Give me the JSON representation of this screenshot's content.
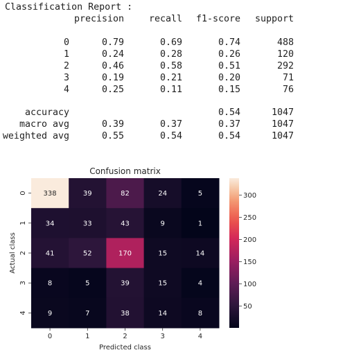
{
  "report": {
    "title": "Classification Report :",
    "headers": [
      "precision",
      "recall",
      "f1-score",
      "support"
    ],
    "rows": [
      {
        "label": "0",
        "values": [
          "0.79",
          "0.69",
          "0.74",
          "488"
        ]
      },
      {
        "label": "1",
        "values": [
          "0.24",
          "0.28",
          "0.26",
          "120"
        ]
      },
      {
        "label": "2",
        "values": [
          "0.46",
          "0.58",
          "0.51",
          "292"
        ]
      },
      {
        "label": "3",
        "values": [
          "0.19",
          "0.21",
          "0.20",
          "71"
        ]
      },
      {
        "label": "4",
        "values": [
          "0.25",
          "0.11",
          "0.15",
          "76"
        ]
      }
    ],
    "summary": [
      {
        "label": "accuracy",
        "values": [
          "",
          "",
          "0.54",
          "1047"
        ]
      },
      {
        "label": "macro avg",
        "values": [
          "0.39",
          "0.37",
          "0.37",
          "1047"
        ]
      },
      {
        "label": "weighted avg",
        "values": [
          "0.55",
          "0.54",
          "0.54",
          "1047"
        ]
      }
    ]
  },
  "chart_data": {
    "type": "heatmap",
    "title": "Confusion matrix",
    "xlabel": "Predicted class",
    "ylabel": "Actual class",
    "x_categories": [
      "0",
      "1",
      "2",
      "3",
      "4"
    ],
    "y_categories": [
      "0",
      "1",
      "2",
      "3",
      "4"
    ],
    "values": [
      [
        338,
        39,
        82,
        24,
        5
      ],
      [
        34,
        33,
        43,
        9,
        1
      ],
      [
        41,
        52,
        170,
        15,
        14
      ],
      [
        8,
        5,
        39,
        15,
        4
      ],
      [
        9,
        7,
        38,
        14,
        8
      ]
    ],
    "colorbar": {
      "min": 1,
      "max": 338,
      "ticks": [
        50,
        100,
        150,
        200,
        250,
        300
      ]
    },
    "colormap": "rocket"
  }
}
